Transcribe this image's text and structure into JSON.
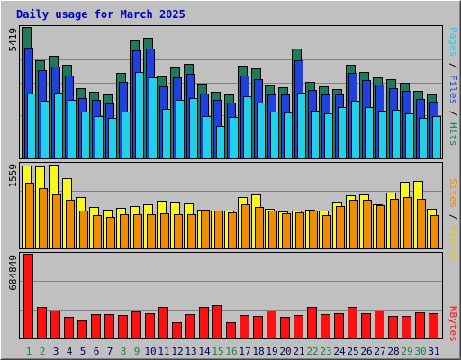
{
  "chart_data": {
    "type": "bar",
    "title": "Daily usage for March 2025",
    "categories": [
      "1",
      "2",
      "3",
      "4",
      "5",
      "6",
      "7",
      "8",
      "9",
      "10",
      "11",
      "12",
      "13",
      "14",
      "15",
      "16",
      "17",
      "18",
      "19",
      "20",
      "21",
      "22",
      "23",
      "24",
      "25",
      "26",
      "27",
      "28",
      "29",
      "30",
      "31"
    ],
    "weekend_days": [
      "1",
      "2",
      "8",
      "9",
      "15",
      "16",
      "22",
      "23",
      "29",
      "30"
    ],
    "panels": [
      {
        "name": "hits-files-pages",
        "ymax_label": "5419",
        "ylim": [
          0,
          5419
        ],
        "legend": [
          "Pages",
          "Files",
          "Hits"
        ],
        "series": [
          {
            "name": "Hits",
            "color": "#1f7a5c",
            "values": [
              5419,
              4028,
              4236,
              3842,
              2893,
              2735,
              2638,
              3542,
              4864,
              4958,
              3394,
              3766,
              3888,
              3072,
              2756,
              2636,
              3818,
              3694,
              2990,
              2936,
              4545,
              3157,
              2970,
              2860,
              3855,
              3552,
              3352,
              3253,
              3107,
              2798,
              2620
            ]
          },
          {
            "name": "Files",
            "color": "#2040e0",
            "values": [
              4555,
              3625,
              3777,
              3406,
              2491,
              2404,
              2279,
              3143,
              4446,
              4528,
              2977,
              3356,
              3496,
              2687,
              2417,
              2296,
              3412,
              3273,
              2624,
              2620,
              4039,
              2803,
              2620,
              2649,
              3528,
              3233,
              3028,
              2911,
              2793,
              2465,
              2328
            ]
          },
          {
            "name": "Pages",
            "color": "#20d0e8",
            "values": [
              2654,
              2391,
              2692,
              2397,
              1945,
              1729,
              1655,
              1927,
              3555,
              3328,
              2058,
              2422,
              2484,
              1726,
              1353,
              1706,
              2570,
              2283,
              1915,
              1906,
              2709,
              1963,
              1844,
              2098,
              2379,
              2098,
              1980,
              2013,
              1860,
              1668,
              1761
            ]
          }
        ]
      },
      {
        "name": "visits-sites",
        "ymax_label": "1559",
        "ylim": [
          0,
          1559
        ],
        "legend": [
          "Sites",
          "Visits"
        ],
        "series": [
          {
            "name": "Visits",
            "color": "#f8f820",
            "values": [
              1520,
              1506,
              1548,
              1295,
              945,
              759,
              705,
              740,
              774,
              811,
              879,
              853,
              837,
              706,
              700,
              703,
              948,
              997,
              728,
              686,
              699,
              721,
              689,
              841,
              977,
              994,
              810,
              1034,
              1234,
              1251,
              736
            ]
          },
          {
            "name": "Sites",
            "color": "#f08c00",
            "values": [
              1208,
              1116,
              1003,
              889,
              696,
              608,
              577,
              633,
              623,
              623,
              645,
              623,
              637,
              721,
              704,
              671,
              814,
              755,
              701,
              653,
              660,
              690,
              619,
              781,
              895,
              891,
              800,
              916,
              942,
              906,
              621
            ]
          }
        ]
      },
      {
        "name": "kbytes",
        "ymax_label": "684849",
        "ylim": [
          0,
          684849
        ],
        "legend": [
          "KBytes"
        ],
        "series": [
          {
            "name": "KBytes",
            "color": "#ff1010",
            "values": [
              684849,
              251627,
              227924,
              173633,
              147366,
              196839,
              193472,
              186834,
              221271,
              204728,
              258224,
              128208,
              198016,
              258224,
              270058,
              128208,
              192808,
              184962,
              228560,
              173633,
              188962,
              256848,
              193472,
              202017,
              254868,
              202017,
              228560,
              182287,
              182287,
              214480,
              204728
            ]
          }
        ]
      }
    ]
  }
}
